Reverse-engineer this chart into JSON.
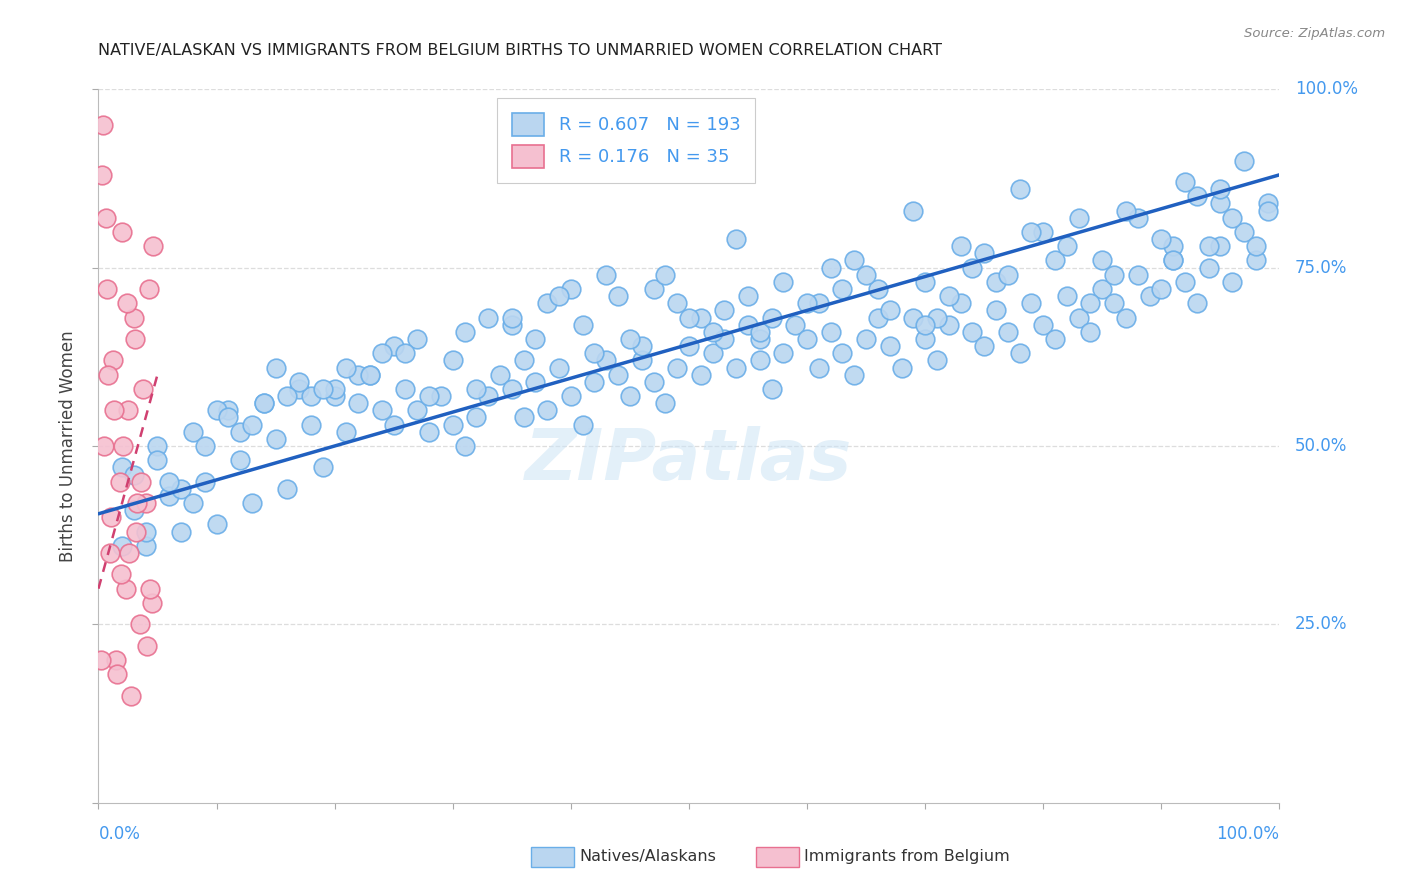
{
  "title": "NATIVE/ALASKAN VS IMMIGRANTS FROM BELGIUM BIRTHS TO UNMARRIED WOMEN CORRELATION CHART",
  "source": "Source: ZipAtlas.com",
  "ylabel": "Births to Unmarried Women",
  "legend_native_R": "R = 0.607",
  "legend_native_N": "N = 193",
  "legend_immigrant_R": "R = 0.176",
  "legend_immigrant_N": "N = 35",
  "native_color": "#bad6f0",
  "native_edge_color": "#6aaee8",
  "native_line_color": "#2060c0",
  "immigrant_color": "#f5c0d0",
  "immigrant_edge_color": "#e87090",
  "immigrant_line_color": "#d04070",
  "label_color": "#4499ee",
  "watermark": "ZIPatlas",
  "background_color": "#ffffff",
  "grid_color": "#dddddd",
  "title_color": "#222222",
  "source_color": "#888888",
  "xmin": 0.0,
  "xmax": 100.0,
  "ymin": 0.0,
  "ymax": 100.0,
  "native_trend_x0": 0.0,
  "native_trend_y0": 40.5,
  "native_trend_x1": 100.0,
  "native_trend_y1": 88.0,
  "immigrant_trend_x0": 0.0,
  "immigrant_trend_y0": 30.0,
  "immigrant_trend_x1": 5.0,
  "immigrant_trend_y1": 60.0,
  "native_x": [
    2,
    3,
    4,
    5,
    6,
    7,
    8,
    9,
    10,
    11,
    12,
    13,
    14,
    15,
    16,
    17,
    18,
    19,
    20,
    21,
    22,
    23,
    24,
    25,
    26,
    27,
    28,
    29,
    30,
    31,
    32,
    33,
    34,
    35,
    36,
    37,
    38,
    39,
    40,
    41,
    42,
    43,
    44,
    45,
    46,
    47,
    48,
    49,
    50,
    51,
    52,
    53,
    54,
    55,
    56,
    57,
    58,
    59,
    60,
    61,
    62,
    63,
    64,
    65,
    66,
    67,
    68,
    69,
    70,
    71,
    72,
    73,
    74,
    75,
    76,
    77,
    78,
    79,
    80,
    81,
    82,
    83,
    84,
    85,
    86,
    87,
    88,
    89,
    90,
    91,
    92,
    93,
    94,
    95,
    96,
    97,
    98,
    99,
    3,
    7,
    12,
    18,
    22,
    27,
    32,
    36,
    41,
    46,
    51,
    56,
    61,
    66,
    71,
    76,
    81,
    86,
    91,
    96,
    5,
    10,
    15,
    20,
    25,
    30,
    35,
    40,
    45,
    50,
    55,
    60,
    65,
    70,
    75,
    80,
    85,
    90,
    95,
    8,
    14,
    21,
    28,
    35,
    42,
    49,
    56,
    63,
    70,
    77,
    84,
    91,
    98,
    9,
    17,
    26,
    33,
    44,
    52,
    58,
    67,
    74,
    82,
    88,
    95,
    11,
    23,
    37,
    47,
    53,
    62,
    73,
    83,
    93,
    6,
    16,
    24,
    38,
    48,
    57,
    64,
    72,
    79,
    87,
    92,
    97,
    13,
    19,
    31,
    39,
    43,
    54,
    69,
    78,
    94,
    99,
    2,
    4
  ],
  "native_y": [
    47,
    41,
    36,
    50,
    43,
    38,
    52,
    45,
    39,
    55,
    48,
    42,
    56,
    51,
    44,
    58,
    53,
    47,
    57,
    52,
    56,
    60,
    55,
    53,
    58,
    55,
    52,
    57,
    53,
    50,
    54,
    57,
    60,
    58,
    54,
    59,
    55,
    61,
    57,
    53,
    59,
    62,
    60,
    57,
    62,
    59,
    56,
    61,
    64,
    60,
    63,
    65,
    61,
    67,
    62,
    58,
    63,
    67,
    65,
    61,
    66,
    63,
    60,
    65,
    68,
    64,
    61,
    68,
    65,
    62,
    67,
    70,
    66,
    64,
    69,
    66,
    63,
    70,
    67,
    65,
    71,
    68,
    66,
    72,
    70,
    68,
    74,
    71,
    72,
    76,
    73,
    70,
    75,
    78,
    73,
    80,
    76,
    84,
    46,
    44,
    52,
    57,
    60,
    65,
    58,
    62,
    67,
    64,
    68,
    65,
    70,
    72,
    68,
    73,
    76,
    74,
    78,
    82,
    48,
    55,
    61,
    58,
    64,
    62,
    67,
    72,
    65,
    68,
    71,
    70,
    74,
    73,
    77,
    80,
    76,
    79,
    84,
    42,
    56,
    61,
    57,
    68,
    63,
    70,
    66,
    72,
    67,
    74,
    70,
    76,
    78,
    50,
    59,
    63,
    68,
    71,
    66,
    73,
    69,
    75,
    78,
    82,
    86,
    54,
    60,
    65,
    72,
    69,
    75,
    78,
    82,
    85,
    45,
    57,
    63,
    70,
    74,
    68,
    76,
    71,
    80,
    83,
    87,
    90,
    53,
    58,
    66,
    71,
    74,
    79,
    83,
    86,
    78,
    83,
    36,
    38
  ],
  "immigrant_x": [
    0.3,
    0.5,
    0.7,
    1.0,
    1.2,
    1.5,
    1.8,
    2.0,
    2.3,
    2.5,
    2.8,
    3.0,
    3.2,
    3.5,
    3.8,
    4.0,
    4.3,
    4.5,
    0.4,
    0.8,
    1.1,
    1.6,
    2.1,
    2.6,
    3.1,
    3.6,
    4.1,
    4.6,
    0.2,
    0.6,
    1.3,
    1.9,
    2.4,
    3.3,
    4.4
  ],
  "immigrant_y": [
    88,
    50,
    72,
    35,
    62,
    20,
    45,
    80,
    30,
    55,
    15,
    68,
    38,
    25,
    58,
    42,
    72,
    28,
    95,
    60,
    40,
    18,
    50,
    35,
    65,
    45,
    22,
    78,
    20,
    82,
    55,
    32,
    70,
    42,
    30
  ]
}
